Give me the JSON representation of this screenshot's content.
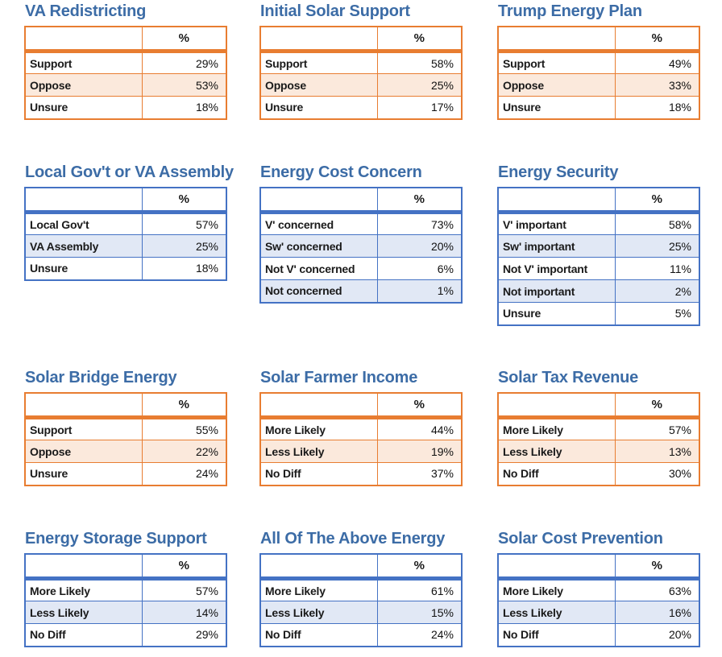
{
  "page": {
    "background": "#ffffff",
    "title_color": "#3C6CA6"
  },
  "themes": {
    "orange": {
      "border": "#E87D31",
      "fill": "#FBE9DC"
    },
    "blue": {
      "border": "#4472C4",
      "fill": "#E1E8F5"
    }
  },
  "chart_data": [
    {
      "type": "table",
      "title": "VA Redistricting",
      "theme": "orange",
      "value_header": "%",
      "rows": [
        {
          "label": "Support",
          "value": "29%"
        },
        {
          "label": "Oppose",
          "value": "53%"
        },
        {
          "label": "Unsure",
          "value": "18%"
        }
      ]
    },
    {
      "type": "table",
      "title": "Initial Solar Support",
      "theme": "orange",
      "value_header": "%",
      "rows": [
        {
          "label": "Support",
          "value": "58%"
        },
        {
          "label": "Oppose",
          "value": "25%"
        },
        {
          "label": "Unsure",
          "value": "17%"
        }
      ]
    },
    {
      "type": "table",
      "title": "Trump Energy Plan",
      "theme": "orange",
      "value_header": "%",
      "rows": [
        {
          "label": "Support",
          "value": "49%"
        },
        {
          "label": "Oppose",
          "value": "33%"
        },
        {
          "label": "Unsure",
          "value": "18%"
        }
      ]
    },
    {
      "type": "table",
      "title": "Local Gov't or VA Assembly",
      "theme": "blue",
      "value_header": "%",
      "rows": [
        {
          "label": "Local Gov't",
          "value": "57%"
        },
        {
          "label": "VA Assembly",
          "value": "25%"
        },
        {
          "label": "Unsure",
          "value": "18%"
        }
      ]
    },
    {
      "type": "table",
      "title": "Energy Cost Concern",
      "theme": "blue",
      "value_header": "%",
      "rows": [
        {
          "label": "V' concerned",
          "value": "73%"
        },
        {
          "label": "Sw' concerned",
          "value": "20%"
        },
        {
          "label": "Not V' concerned",
          "value": "6%"
        },
        {
          "label": "Not concerned",
          "value": "1%"
        }
      ]
    },
    {
      "type": "table",
      "title": "Energy Security",
      "theme": "blue",
      "value_header": "%",
      "rows": [
        {
          "label": "V' important",
          "value": "58%"
        },
        {
          "label": "Sw' important",
          "value": "25%"
        },
        {
          "label": "Not V' important",
          "value": "11%"
        },
        {
          "label": "Not important",
          "value": "2%"
        },
        {
          "label": "Unsure",
          "value": "5%"
        }
      ]
    },
    {
      "type": "table",
      "title": "Solar Bridge Energy",
      "theme": "orange",
      "value_header": "%",
      "rows": [
        {
          "label": "Support",
          "value": "55%"
        },
        {
          "label": "Oppose",
          "value": "22%"
        },
        {
          "label": "Unsure",
          "value": "24%"
        }
      ]
    },
    {
      "type": "table",
      "title": "Solar Farmer Income",
      "theme": "orange",
      "value_header": "%",
      "rows": [
        {
          "label": "More Likely",
          "value": "44%"
        },
        {
          "label": "Less Likely",
          "value": "19%"
        },
        {
          "label": "No Diff",
          "value": "37%"
        }
      ]
    },
    {
      "type": "table",
      "title": "Solar Tax Revenue",
      "theme": "orange",
      "value_header": "%",
      "rows": [
        {
          "label": "More Likely",
          "value": "57%"
        },
        {
          "label": "Less Likely",
          "value": "13%"
        },
        {
          "label": "No Diff",
          "value": "30%"
        }
      ]
    },
    {
      "type": "table",
      "title": "Energy Storage Support",
      "theme": "blue",
      "value_header": "%",
      "rows": [
        {
          "label": "More Likely",
          "value": "57%"
        },
        {
          "label": "Less Likely",
          "value": "14%"
        },
        {
          "label": "No Diff",
          "value": "29%"
        }
      ]
    },
    {
      "type": "table",
      "title": "All Of The Above Energy",
      "theme": "blue",
      "value_header": "%",
      "rows": [
        {
          "label": "More Likely",
          "value": "61%"
        },
        {
          "label": "Less Likely",
          "value": "15%"
        },
        {
          "label": "No Diff",
          "value": "24%"
        }
      ]
    },
    {
      "type": "table",
      "title": "Solar Cost Prevention",
      "theme": "blue",
      "value_header": "%",
      "rows": [
        {
          "label": "More Likely",
          "value": "63%"
        },
        {
          "label": "Less Likely",
          "value": "16%"
        },
        {
          "label": "No Diff",
          "value": "20%"
        }
      ]
    }
  ]
}
